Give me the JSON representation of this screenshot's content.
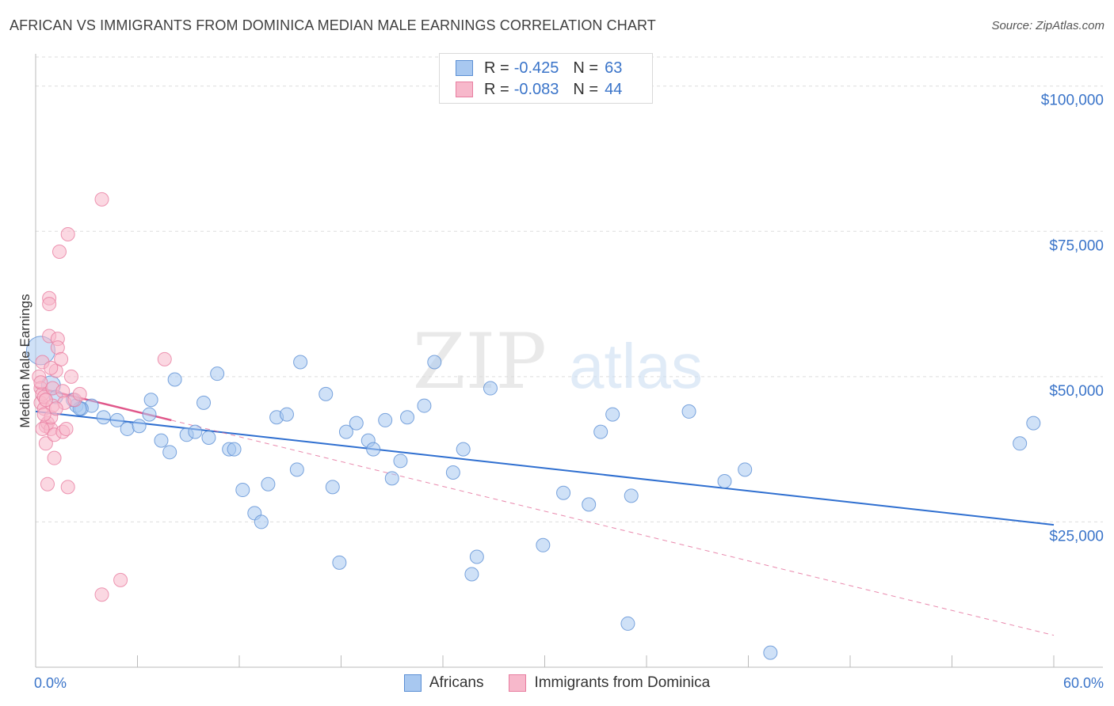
{
  "header": {
    "title": "AFRICAN VS IMMIGRANTS FROM DOMINICA MEDIAN MALE EARNINGS CORRELATION CHART",
    "source": "Source: ZipAtlas.com"
  },
  "legend": {
    "rows": [
      {
        "r_label": "R =",
        "r_value": "-0.425",
        "n_label": "N =",
        "n_value": "63",
        "color": "#a8c8f0",
        "border": "#5b8fd4"
      },
      {
        "r_label": "R =",
        "r_value": "-0.083",
        "n_label": "N =",
        "n_value": "44",
        "color": "#f7b8cb",
        "border": "#e87da0"
      }
    ]
  },
  "bottom_legend": [
    "Africans",
    "Immigrants from Dominica"
  ],
  "watermark": {
    "zip": "ZIP",
    "atlas": "atlas"
  },
  "chart_data": {
    "type": "scatter",
    "title": "AFRICAN VS IMMIGRANTS FROM DOMINICA MEDIAN MALE EARNINGS CORRELATION CHART",
    "xlabel": "",
    "ylabel": "Median Male Earnings",
    "xlim": [
      0,
      60
    ],
    "ylim": [
      0,
      105000
    ],
    "x_tick_labels": [
      "0.0%",
      "60.0%"
    ],
    "y_ticks": [
      25000,
      50000,
      75000,
      100000
    ],
    "y_tick_labels": [
      "$25,000",
      "$50,000",
      "$75,000",
      "$100,000"
    ],
    "series": [
      {
        "name": "Africans",
        "color": "#a8c8f0",
        "stroke": "#5b8fd4",
        "trend": {
          "x": [
            0,
            60
          ],
          "y": [
            44000,
            24500
          ],
          "color": "#2f6fd0"
        },
        "points": [
          [
            0.3,
            54500
          ],
          [
            0.9,
            48500
          ],
          [
            2.4,
            45000
          ],
          [
            1.2,
            46500
          ],
          [
            3.3,
            45000
          ],
          [
            2.7,
            44500
          ],
          [
            4.0,
            43000
          ],
          [
            4.8,
            42500
          ],
          [
            5.4,
            41000
          ],
          [
            6.1,
            41500
          ],
          [
            6.7,
            43500
          ],
          [
            6.8,
            46000
          ],
          [
            7.4,
            39000
          ],
          [
            7.9,
            37000
          ],
          [
            8.2,
            49500
          ],
          [
            8.9,
            40000
          ],
          [
            9.4,
            40500
          ],
          [
            9.9,
            45500
          ],
          [
            10.2,
            39500
          ],
          [
            10.7,
            50500
          ],
          [
            11.4,
            37500
          ],
          [
            11.7,
            37500
          ],
          [
            12.2,
            30500
          ],
          [
            12.9,
            26500
          ],
          [
            13.3,
            25000
          ],
          [
            13.7,
            31500
          ],
          [
            14.2,
            43000
          ],
          [
            14.8,
            43500
          ],
          [
            15.4,
            34000
          ],
          [
            15.6,
            52500
          ],
          [
            17.1,
            47000
          ],
          [
            17.5,
            31000
          ],
          [
            17.9,
            18000
          ],
          [
            18.3,
            40500
          ],
          [
            18.9,
            42000
          ],
          [
            19.6,
            39000
          ],
          [
            19.9,
            37500
          ],
          [
            20.6,
            42500
          ],
          [
            21.0,
            32500
          ],
          [
            21.5,
            35500
          ],
          [
            21.9,
            43000
          ],
          [
            22.9,
            45000
          ],
          [
            23.5,
            52500
          ],
          [
            24.6,
            33500
          ],
          [
            25.2,
            37500
          ],
          [
            25.7,
            16000
          ],
          [
            26.0,
            19000
          ],
          [
            26.8,
            48000
          ],
          [
            29.9,
            21000
          ],
          [
            31.1,
            30000
          ],
          [
            32.6,
            28000
          ],
          [
            33.3,
            40500
          ],
          [
            34.0,
            43500
          ],
          [
            34.9,
            7500
          ],
          [
            35.1,
            29500
          ],
          [
            38.5,
            44000
          ],
          [
            40.6,
            32000
          ],
          [
            41.8,
            34000
          ],
          [
            43.3,
            2500
          ],
          [
            58.0,
            38500
          ],
          [
            58.8,
            42000
          ],
          [
            2.6,
            44500
          ],
          [
            2.2,
            46000
          ]
        ]
      },
      {
        "name": "Immigrants from Dominica",
        "color": "#f7b8cb",
        "stroke": "#e87da0",
        "trend": {
          "x": [
            0,
            8
          ],
          "y": [
            48200,
            42500
          ],
          "x_ext": 60,
          "y_ext": 5500,
          "color": "#e0578a"
        },
        "points": [
          [
            0.2,
            50000
          ],
          [
            0.3,
            48000
          ],
          [
            0.3,
            45500
          ],
          [
            0.4,
            47000
          ],
          [
            0.4,
            52500
          ],
          [
            0.5,
            44500
          ],
          [
            0.5,
            46500
          ],
          [
            0.6,
            38500
          ],
          [
            0.6,
            41500
          ],
          [
            0.7,
            42000
          ],
          [
            0.7,
            31500
          ],
          [
            0.8,
            63500
          ],
          [
            0.8,
            62500
          ],
          [
            0.8,
            57000
          ],
          [
            0.9,
            41000
          ],
          [
            0.9,
            43000
          ],
          [
            1.0,
            48000
          ],
          [
            1.0,
            45000
          ],
          [
            1.1,
            40000
          ],
          [
            1.1,
            36000
          ],
          [
            1.2,
            51000
          ],
          [
            1.3,
            56500
          ],
          [
            1.3,
            55000
          ],
          [
            1.4,
            71500
          ],
          [
            1.5,
            53000
          ],
          [
            1.6,
            40500
          ],
          [
            1.6,
            47500
          ],
          [
            1.7,
            45500
          ],
          [
            1.8,
            41000
          ],
          [
            1.9,
            74500
          ],
          [
            1.9,
            31000
          ],
          [
            2.1,
            50000
          ],
          [
            2.3,
            46000
          ],
          [
            2.6,
            47000
          ],
          [
            3.9,
            80500
          ],
          [
            3.9,
            12500
          ],
          [
            5.0,
            15000
          ],
          [
            7.6,
            53000
          ],
          [
            0.3,
            49000
          ],
          [
            0.5,
            43500
          ],
          [
            0.9,
            51500
          ],
          [
            1.2,
            44500
          ],
          [
            0.4,
            41000
          ],
          [
            0.6,
            46000
          ]
        ]
      }
    ]
  }
}
